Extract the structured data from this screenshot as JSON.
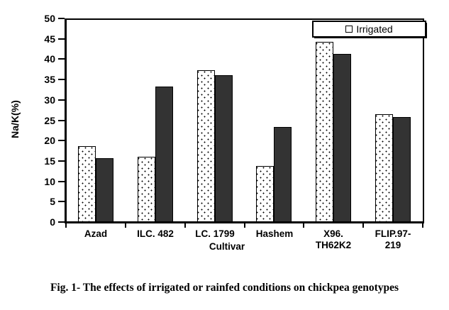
{
  "figure": {
    "caption": "Fig. 1- The effects of irrigated or rainfed conditions on chickpea genotypes"
  },
  "chart_data": {
    "type": "bar",
    "title": "",
    "xlabel": "Cultivar",
    "ylabel": "Na/K(%)",
    "ylim": [
      0,
      50
    ],
    "yticks": [
      0,
      5,
      10,
      15,
      20,
      25,
      30,
      35,
      40,
      45,
      50
    ],
    "grid": false,
    "legend_position": "top-right-inside",
    "legend_visible_entries": [
      "Irrigated"
    ],
    "categories": [
      "Azad",
      "ILC. 482",
      "LC. 1799",
      "Hashem",
      "X96.\nTH62K2",
      "FLIP.97-\n219"
    ],
    "series": [
      {
        "name": "Irrigated",
        "pattern": "white-dotted",
        "values": [
          18.6,
          16.0,
          37.3,
          13.7,
          44.3,
          26.4
        ]
      },
      {
        "name": "Rainfed",
        "pattern": "dark-solid",
        "color": "#333333",
        "values": [
          15.7,
          33.2,
          36.0,
          23.3,
          41.3,
          25.8
        ]
      }
    ]
  },
  "colors": {
    "bar_dark": "#333333",
    "axis": "#000000",
    "background": "#ffffff"
  }
}
